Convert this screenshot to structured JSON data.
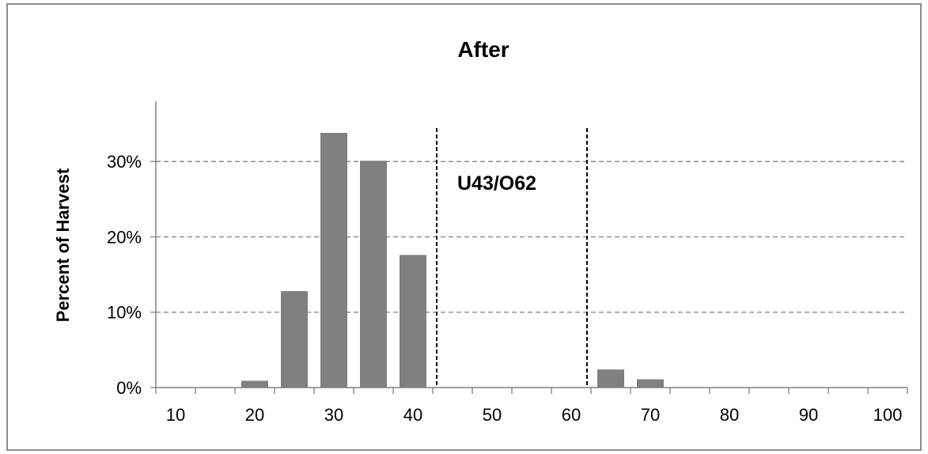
{
  "chart_data": {
    "type": "bar",
    "title": "After",
    "ylabel": "Percent of Harvest",
    "xlabel": "",
    "x": [
      10,
      15,
      20,
      25,
      30,
      35,
      40,
      45,
      50,
      55,
      60,
      65,
      70,
      75,
      80,
      85,
      90,
      95,
      100
    ],
    "values": [
      0,
      0,
      0.9,
      12.8,
      33.8,
      30.1,
      17.6,
      0,
      0,
      0,
      0,
      2.4,
      1.1,
      0,
      0,
      0,
      0,
      0,
      0
    ],
    "ylim": [
      0,
      35
    ],
    "yticks": [
      0,
      10,
      20,
      30
    ],
    "ytick_labels": [
      "0%",
      "10%",
      "20%",
      "30%"
    ],
    "xtick_labels": [
      "10",
      "20",
      "30",
      "40",
      "50",
      "60",
      "70",
      "80",
      "90",
      "100"
    ],
    "grid": true,
    "bar_color": "#808080",
    "vlines": [
      43,
      62
    ],
    "annotation": "U43/O62"
  }
}
